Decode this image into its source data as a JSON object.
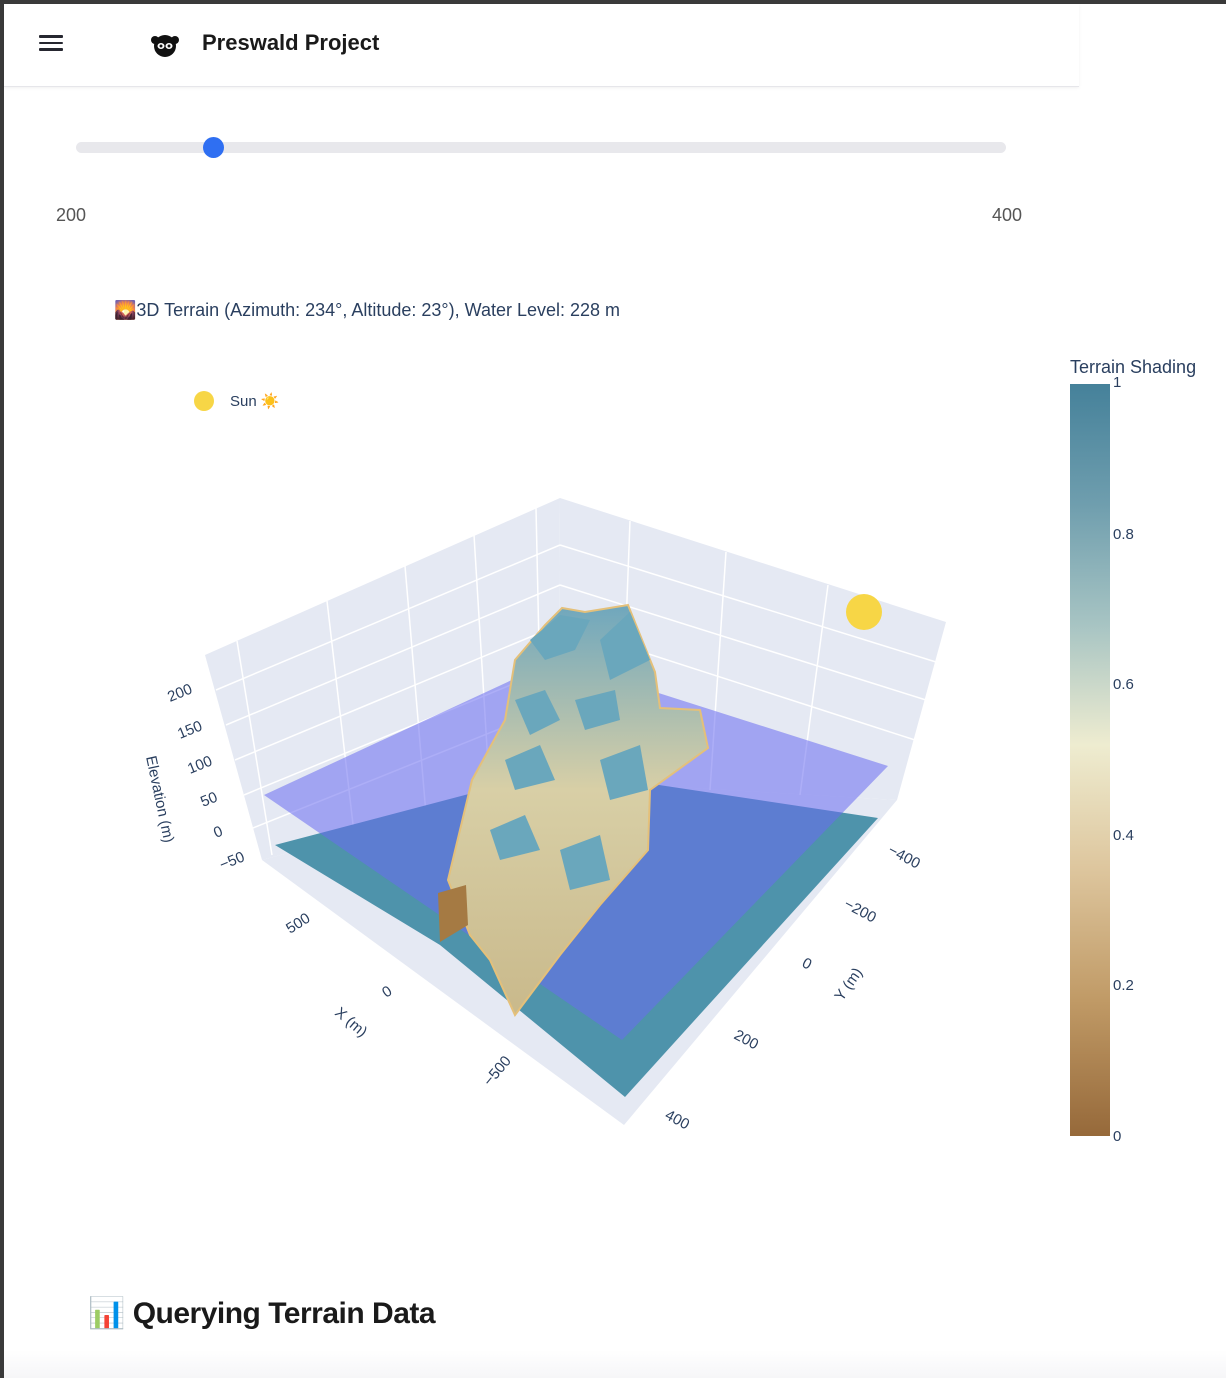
{
  "header": {
    "title": "Preswald Project",
    "menu_icon": "hamburger-icon",
    "logo_icon": "preswald-logo-icon"
  },
  "slider": {
    "min_label": "200",
    "max_label": "400",
    "value": 228,
    "min": 200,
    "max": 400
  },
  "chart": {
    "title": "🌄3D Terrain (Azimuth: 234°, Altitude: 23°), Water Level: 228 m",
    "legend": {
      "label": "Sun ☀️",
      "color": "#f7d646"
    },
    "colorbar": {
      "title": "Terrain Shading",
      "ticks": [
        "1",
        "0.8",
        "0.6",
        "0.4",
        "0.2",
        "0"
      ]
    },
    "axes": {
      "z_title": "Elevation (m)",
      "z_ticks": [
        "200",
        "150",
        "100",
        "50",
        "0",
        "−50"
      ],
      "x_title": "X (m)",
      "x_ticks": [
        "500",
        "0",
        "−500"
      ],
      "y_title": "Y (m)",
      "y_ticks": [
        "−400",
        "−200",
        "0",
        "200",
        "400"
      ]
    }
  },
  "chart_data": {
    "type": "surface",
    "title": "🌄3D Terrain (Azimuth: 234°, Altitude: 23°), Water Level: 228 m",
    "azimuth_deg": 234,
    "altitude_deg": 23,
    "water_level_m": 228,
    "xlabel": "X (m)",
    "ylabel": "Y (m)",
    "zlabel": "Elevation (m)",
    "x_ticks": [
      500,
      0,
      -500
    ],
    "y_ticks": [
      -400,
      -200,
      0,
      200,
      400
    ],
    "z_ticks": [
      200,
      150,
      100,
      50,
      0,
      -50
    ],
    "colorscale_title": "Terrain Shading",
    "colorscale_range": [
      0,
      1
    ],
    "series": [
      {
        "name": "Sun ☀️",
        "type": "scatter3d",
        "color": "#f7d646"
      }
    ]
  },
  "section": {
    "title": "📊 Querying Terrain Data"
  }
}
